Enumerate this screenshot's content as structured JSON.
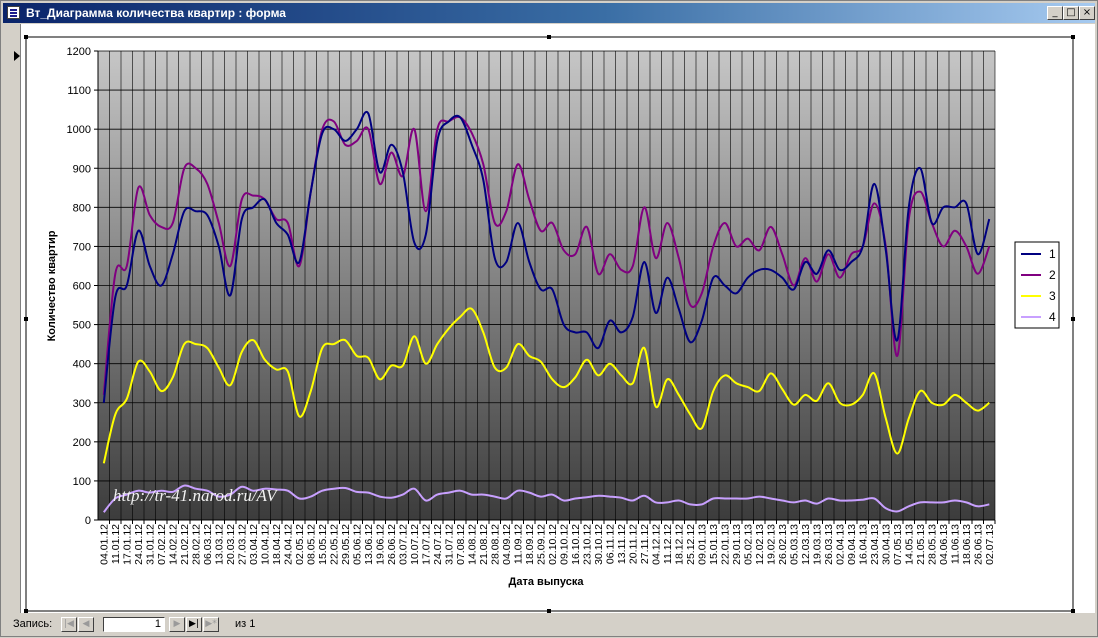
{
  "window": {
    "title": "Вт_Диаграмма количества квартир : форма",
    "controls": {
      "minimize": "_",
      "maximize": "□",
      "close": "×"
    }
  },
  "navigation": {
    "label": "Запись:",
    "current": "1",
    "of_label": "из",
    "total": "1",
    "buttons": {
      "first": "|◀",
      "prev": "◀",
      "next": "▶",
      "last": "▶|",
      "new": "▶*"
    }
  },
  "watermark": "http://tr-41.narod.ru/AV",
  "chart_data": {
    "type": "line",
    "title": "",
    "ylabel": "Количество квартир",
    "xlabel": "Дата выпуска",
    "ylim": [
      0,
      1200
    ],
    "yticks": [
      0,
      100,
      200,
      300,
      400,
      500,
      600,
      700,
      800,
      900,
      1000,
      1100,
      1200
    ],
    "grid": true,
    "legend_position": "right",
    "background": "gradient gray (light top, dark bottom)",
    "x": [
      "04.01.12",
      "11.01.12",
      "17.01.12",
      "24.01.12",
      "31.01.12",
      "07.02.12",
      "14.02.12",
      "21.02.12",
      "28.02.12",
      "06.03.12",
      "13.03.12",
      "20.03.12",
      "27.03.12",
      "03.04.12",
      "10.04.12",
      "18.04.12",
      "24.04.12",
      "02.05.12",
      "08.05.12",
      "15.05.12",
      "22.05.12",
      "29.05.12",
      "05.06.12",
      "13.06.12",
      "19.06.12",
      "26.06.12",
      "03.07.12",
      "10.07.12",
      "17.07.12",
      "24.07.12",
      "31.07.12",
      "07.08.12",
      "14.08.12",
      "21.08.12",
      "28.08.12",
      "04.09.12",
      "11.09.12",
      "18.09.12",
      "25.09.12",
      "02.10.12",
      "09.10.12",
      "16.10.12",
      "23.10.12",
      "30.10.12",
      "06.11.12",
      "13.11.12",
      "20.11.12",
      "27.11.12",
      "04.12.12",
      "11.12.12",
      "18.12.12",
      "25.12.12",
      "09.01.13",
      "15.01.13",
      "22.01.13",
      "29.01.13",
      "05.02.13",
      "12.02.13",
      "19.02.13",
      "26.02.13",
      "05.03.13",
      "12.03.13",
      "19.03.13",
      "26.03.13",
      "02.04.13",
      "09.04.13",
      "16.04.13",
      "23.04.13",
      "30.04.13",
      "07.05.13",
      "14.05.13",
      "21.05.13",
      "28.05.13",
      "04.06.13",
      "11.06.13",
      "18.06.13",
      "26.06.13",
      "02.07.13"
    ],
    "series": [
      {
        "name": "1",
        "color": "#000080",
        "values": [
          300,
          570,
          600,
          740,
          650,
          600,
          680,
          790,
          790,
          780,
          700,
          575,
          770,
          800,
          820,
          760,
          730,
          660,
          840,
          990,
          1000,
          970,
          1000,
          1040,
          890,
          960,
          890,
          710,
          730,
          970,
          1020,
          1030,
          960,
          870,
          670,
          660,
          760,
          660,
          590,
          590,
          500,
          480,
          480,
          440,
          510,
          480,
          520,
          660,
          530,
          620,
          540,
          455,
          510,
          620,
          600,
          580,
          620,
          640,
          640,
          620,
          590,
          660,
          630,
          690,
          640,
          660,
          700,
          860,
          690,
          460,
          800,
          900,
          760,
          800,
          800,
          810,
          680,
          770
        ]
      },
      {
        "name": "2",
        "color": "#800080",
        "values": [
          320,
          630,
          650,
          850,
          780,
          750,
          760,
          900,
          900,
          860,
          760,
          650,
          820,
          830,
          820,
          770,
          760,
          650,
          840,
          1000,
          1020,
          960,
          970,
          1000,
          860,
          940,
          880,
          1000,
          790,
          1000,
          1020,
          1030,
          990,
          910,
          760,
          790,
          910,
          820,
          740,
          760,
          690,
          680,
          750,
          630,
          680,
          640,
          650,
          800,
          670,
          760,
          670,
          550,
          580,
          700,
          760,
          700,
          720,
          690,
          750,
          680,
          600,
          670,
          610,
          680,
          620,
          680,
          700,
          810,
          700,
          420,
          770,
          840,
          760,
          700,
          740,
          700,
          630,
          700
        ]
      },
      {
        "name": "3",
        "color": "#ffff00",
        "values": [
          145,
          270,
          310,
          405,
          380,
          330,
          365,
          450,
          450,
          440,
          390,
          345,
          430,
          460,
          410,
          385,
          380,
          265,
          330,
          440,
          450,
          460,
          420,
          415,
          360,
          395,
          395,
          470,
          400,
          450,
          490,
          520,
          540,
          480,
          390,
          390,
          450,
          420,
          405,
          360,
          340,
          365,
          410,
          370,
          400,
          370,
          350,
          440,
          290,
          360,
          320,
          270,
          235,
          330,
          370,
          350,
          340,
          330,
          375,
          335,
          295,
          320,
          305,
          350,
          300,
          295,
          320,
          375,
          260,
          170,
          260,
          330,
          300,
          295,
          320,
          300,
          280,
          300
        ]
      },
      {
        "name": "4",
        "color": "#c8a0ff",
        "values": [
          20,
          55,
          65,
          75,
          70,
          75,
          72,
          88,
          80,
          75,
          60,
          65,
          85,
          75,
          80,
          78,
          75,
          55,
          60,
          75,
          80,
          82,
          72,
          70,
          60,
          57,
          65,
          80,
          50,
          65,
          70,
          75,
          65,
          65,
          60,
          55,
          75,
          70,
          60,
          65,
          50,
          55,
          58,
          62,
          60,
          57,
          50,
          62,
          45,
          45,
          50,
          40,
          40,
          55,
          55,
          55,
          55,
          60,
          55,
          50,
          45,
          50,
          42,
          55,
          50,
          50,
          52,
          55,
          30,
          22,
          35,
          45,
          45,
          45,
          50,
          45,
          35,
          40
        ]
      }
    ]
  }
}
